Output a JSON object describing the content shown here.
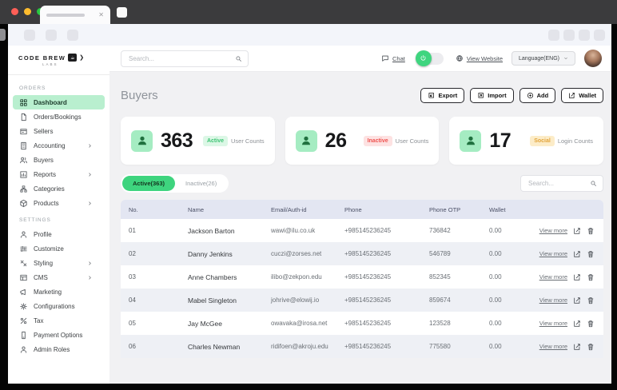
{
  "browser": {
    "traffic_lights": [
      "#ff5f57",
      "#febc2e",
      "#28c840"
    ],
    "tab_close_glyph": "✕"
  },
  "sidebar": {
    "logo_line1": "CODE BREW",
    "logo_line2": "LABS",
    "sections": [
      {
        "label": "ORDERS",
        "items": [
          {
            "label": "Dashboard",
            "icon": "grid",
            "active": true,
            "chevron": false
          },
          {
            "label": "Orders/Bookings",
            "icon": "doc",
            "active": false,
            "chevron": false
          },
          {
            "label": "Sellers",
            "icon": "card",
            "active": false,
            "chevron": false
          },
          {
            "label": "Accounting",
            "icon": "calc",
            "active": false,
            "chevron": true
          },
          {
            "label": "Buyers",
            "icon": "users",
            "active": false,
            "chevron": false
          },
          {
            "label": "Reports",
            "icon": "chart",
            "active": false,
            "chevron": true
          },
          {
            "label": "Categories",
            "icon": "sitemap",
            "active": false,
            "chevron": false
          },
          {
            "label": "Products",
            "icon": "box",
            "active": false,
            "chevron": true
          }
        ]
      },
      {
        "label": "SETTINGS",
        "items": [
          {
            "label": "Profile",
            "icon": "user",
            "active": false,
            "chevron": false
          },
          {
            "label": "Customize",
            "icon": "sliders",
            "active": false,
            "chevron": false
          },
          {
            "label": "Styling",
            "icon": "brush",
            "active": false,
            "chevron": true
          },
          {
            "label": "CMS",
            "icon": "layout",
            "active": false,
            "chevron": true
          },
          {
            "label": "Marketing",
            "icon": "megaphone",
            "active": false,
            "chevron": false
          },
          {
            "label": "Configurations",
            "icon": "gear",
            "active": false,
            "chevron": false
          },
          {
            "label": "Tax",
            "icon": "percent",
            "active": false,
            "chevron": false
          },
          {
            "label": "Payment Options",
            "icon": "payment",
            "active": false,
            "chevron": false
          },
          {
            "label": "Admin Roles",
            "icon": "user",
            "active": false,
            "chevron": false
          }
        ]
      }
    ]
  },
  "header": {
    "search_placeholder": "Search...",
    "chat_label": "Chat",
    "view_website_label": "View Website",
    "language_label": "Language(ENG)"
  },
  "page": {
    "title": "Buyers",
    "actions": [
      {
        "label": "Export",
        "icon": "export"
      },
      {
        "label": "Import",
        "icon": "import"
      },
      {
        "label": "Add",
        "icon": "plus"
      },
      {
        "label": "Wallet",
        "icon": "edit"
      }
    ]
  },
  "stats": [
    {
      "value": "363",
      "badge": "Active",
      "badge_bg": "#dcf7e6",
      "badge_color": "#3cc473",
      "label": "User Counts"
    },
    {
      "value": "26",
      "badge": "Inactive",
      "badge_bg": "#fde2e2",
      "badge_color": "#ef5350",
      "label": "User Counts"
    },
    {
      "value": "17",
      "badge": "Social",
      "badge_bg": "#fcecc8",
      "badge_color": "#e2a43b",
      "label": "Login Counts"
    }
  ],
  "tabs": [
    {
      "label": "Active(363)",
      "active": true
    },
    {
      "label": "Inactive(26)",
      "active": false
    }
  ],
  "table": {
    "search_placeholder": "Search...",
    "columns": [
      "No.",
      "Name",
      "Email/Auth-id",
      "Phone",
      "Phone OTP",
      "Wallet"
    ],
    "view_more_label": "View more",
    "rows": [
      {
        "no": "01",
        "name": "Jackson Barton",
        "email": "wawi@ilu.co.uk",
        "phone": "+985145236245",
        "otp": "736842",
        "wallet": "0.00",
        "avatar_color": "#8a5238"
      },
      {
        "no": "02",
        "name": "Danny Jenkins",
        "email": "cuczi@zorses.net",
        "phone": "+985145236245",
        "otp": "546789",
        "wallet": "0.00",
        "avatar_color": "#4f7d5c"
      },
      {
        "no": "03",
        "name": "Anne Chambers",
        "email": "ilibo@zekpon.edu",
        "phone": "+985145236245",
        "otp": "852345",
        "wallet": "0.00",
        "avatar_color": "#e9e2dc"
      },
      {
        "no": "04",
        "name": "Mabel Singleton",
        "email": "johrive@elowij.io",
        "phone": "+985145236245",
        "otp": "859674",
        "wallet": "0.00",
        "avatar_color": "#332c40"
      },
      {
        "no": "05",
        "name": "Jay McGee",
        "email": "owavaka@irosa.net",
        "phone": "+985145236245",
        "otp": "123528",
        "wallet": "0.00",
        "avatar_color": "#6e4a38"
      },
      {
        "no": "06",
        "name": "Charles Newman",
        "email": "ridifoen@akroju.edu",
        "phone": "+985145236245",
        "otp": "775580",
        "wallet": "0.00",
        "avatar_color": "#b9bfc6"
      }
    ]
  },
  "theme": {
    "accent_green": "#3ed47e",
    "active_nav_bg": "#b9efcf",
    "stat_icon_bg": "#a5ecc2",
    "table_header_bg": "#e3e6f2",
    "row_alt_bg": "#eef0f5"
  }
}
